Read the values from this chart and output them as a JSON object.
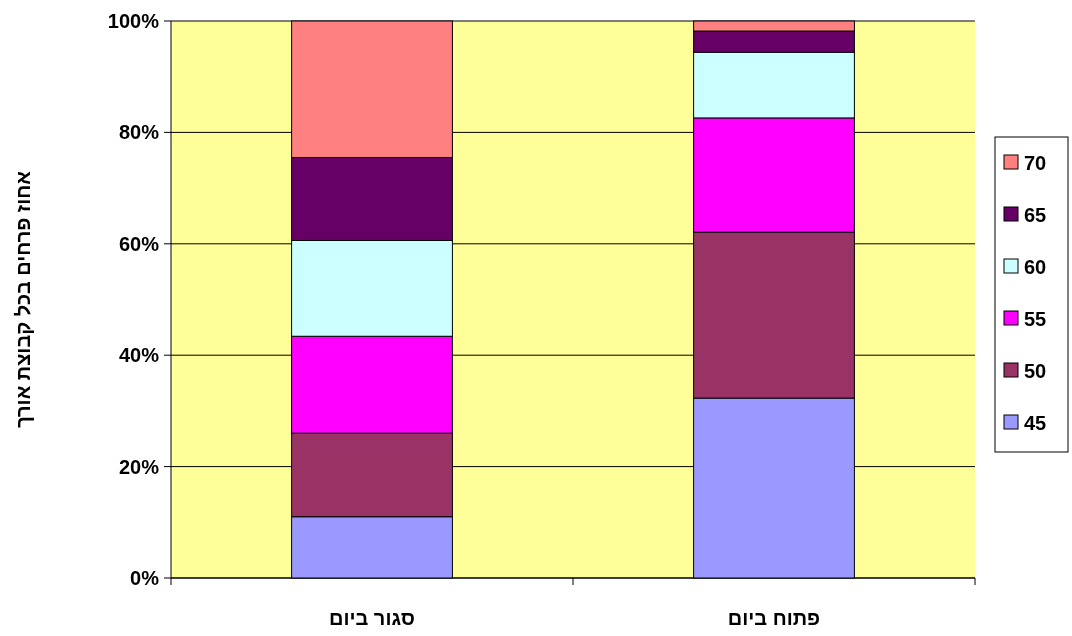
{
  "chart_data": {
    "type": "bar",
    "stacked": true,
    "ylabel": "אחוז פרחים בכל קבוצת אורך",
    "categories": [
      "סגור ביום",
      "פתוח ביום"
    ],
    "series": [
      {
        "name": "45",
        "color": "#9999ff",
        "values": [
          11,
          32.3
        ]
      },
      {
        "name": "50",
        "color": "#993366",
        "values": [
          15,
          29.8
        ]
      },
      {
        "name": "55",
        "color": "#ff00ff",
        "values": [
          17.4,
          20.5
        ]
      },
      {
        "name": "60",
        "color": "#ccffff",
        "values": [
          17.2,
          11.8
        ]
      },
      {
        "name": "65",
        "color": "#660066",
        "values": [
          14.9,
          3.8
        ]
      },
      {
        "name": "70",
        "color": "#ff8080",
        "values": [
          24.5,
          1.8
        ]
      }
    ],
    "ylim": [
      0,
      100
    ],
    "yticks": [
      {
        "value": 0,
        "label": "0%"
      },
      {
        "value": 20,
        "label": "20%"
      },
      {
        "value": 40,
        "label": "40%"
      },
      {
        "value": 60,
        "label": "60%"
      },
      {
        "value": 80,
        "label": "80%"
      },
      {
        "value": 100,
        "label": "100%"
      }
    ],
    "grid": "y",
    "legend": "right"
  }
}
